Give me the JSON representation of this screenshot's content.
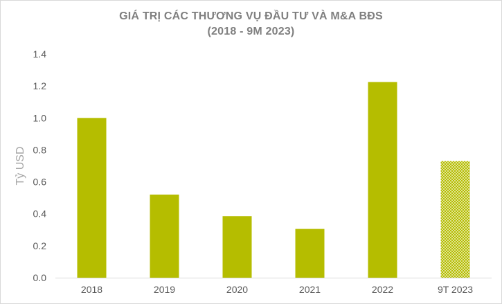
{
  "chart_data": {
    "type": "bar",
    "title": "GIÁ TRỊ CÁC THƯƠNG VỤ ĐẦU TƯ VÀ M&A BĐS",
    "subtitle": "(2018 - 9M 2023)",
    "ylabel": "Tỷ USD",
    "xlabel": "",
    "categories": [
      "2018",
      "2019",
      "2020",
      "2021",
      "2022",
      "9T 2023"
    ],
    "values": [
      1.0,
      0.52,
      0.385,
      0.305,
      1.225,
      0.73
    ],
    "ylim": [
      0,
      1.4
    ],
    "yticks": [
      "0.0",
      "0.2",
      "0.4",
      "0.6",
      "0.8",
      "1.0",
      "1.2",
      "1.4"
    ],
    "grid": false,
    "legend": "none",
    "bar_color": "#b5bd00",
    "pattern_bars": [
      5
    ]
  }
}
